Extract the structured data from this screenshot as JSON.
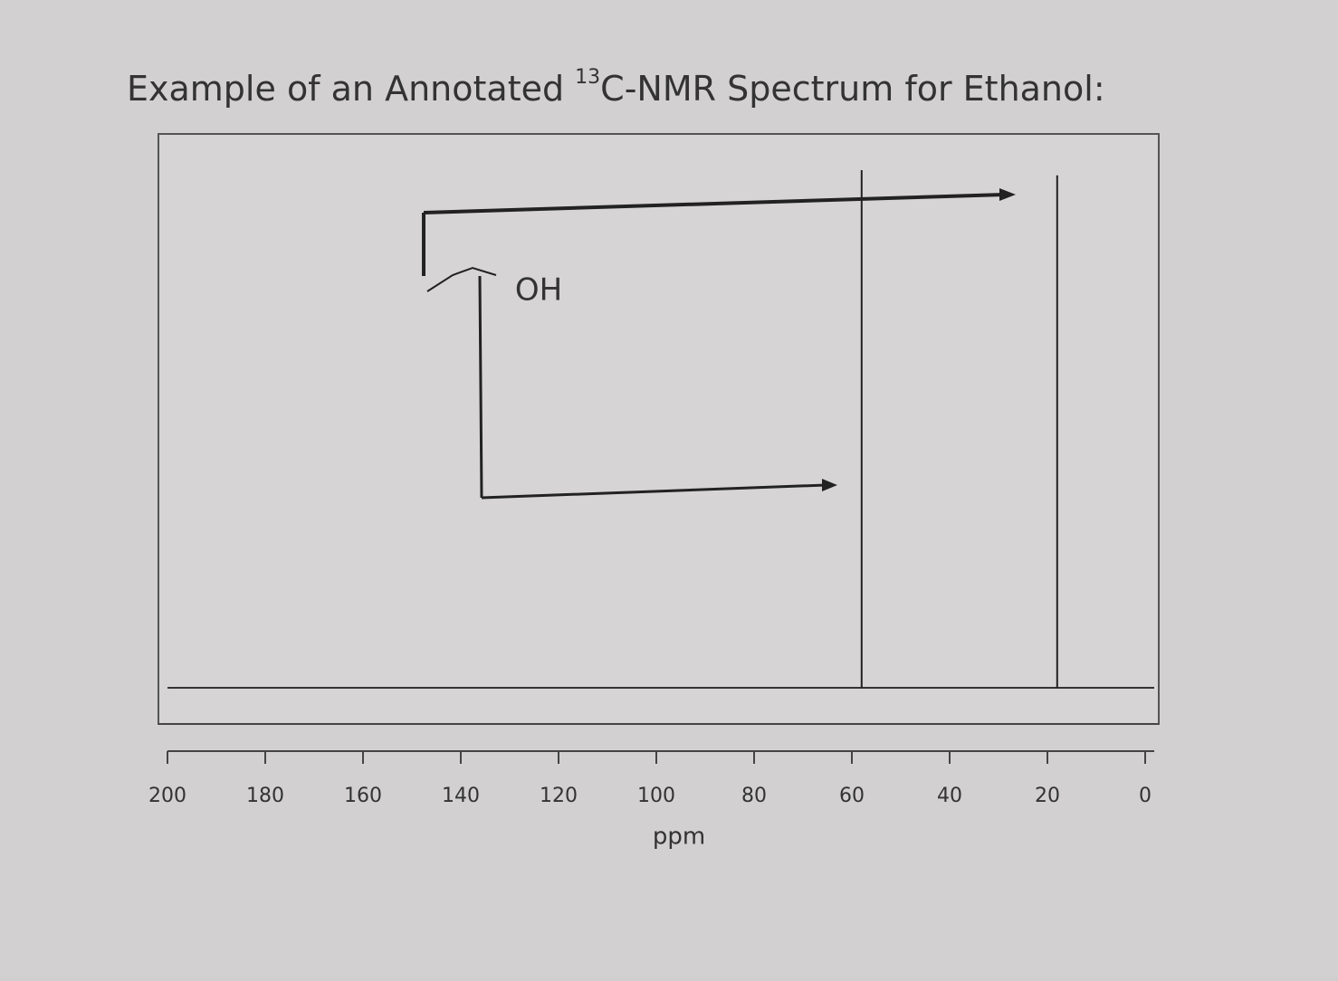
{
  "heading": {
    "before": "Example of an Annotated ",
    "superscript": "13",
    "after": "C-NMR Spectrum for Ethanol:"
  },
  "chart_data": {
    "type": "stem",
    "x": [
      58,
      18
    ],
    "values": [
      100,
      99
    ],
    "color": "#222222",
    "xlim": [
      200,
      0
    ],
    "xticks": [
      200,
      180,
      160,
      140,
      120,
      100,
      80,
      60,
      40,
      20,
      0
    ],
    "ylim": [
      0,
      100
    ],
    "xlabel": "ppm",
    "annotation": "OH"
  }
}
